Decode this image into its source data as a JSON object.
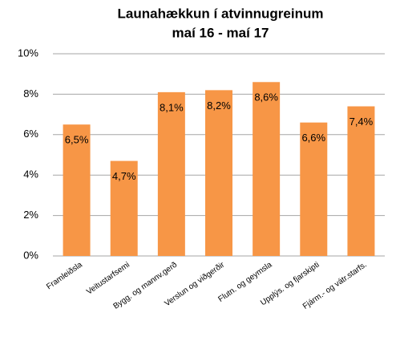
{
  "chart_data": {
    "type": "bar",
    "title": "Launahækkun í atvinnugreinum",
    "subtitle": "maí 16 - maí 17",
    "categories": [
      "Framleiðsla",
      "Veitustarfsemi",
      "Bygg. og mannv.gerð",
      "Verslun og viðgerðir",
      "Flutn. og geymsla",
      "Upplýs. og fjarskipti",
      "Fjárm.- og vátr.starfs."
    ],
    "values": [
      6.5,
      4.7,
      8.1,
      8.2,
      8.6,
      6.6,
      7.4
    ],
    "value_labels": [
      "6,5%",
      "4,7%",
      "8,1%",
      "8,2%",
      "8,6%",
      "6,6%",
      "7,4%"
    ],
    "color": "#f79646",
    "ylim": [
      0,
      10
    ],
    "yticks": [
      {
        "value": 0,
        "label": "0%"
      },
      {
        "value": 2,
        "label": "2%"
      },
      {
        "value": 4,
        "label": "4%"
      },
      {
        "value": 6,
        "label": "6%"
      },
      {
        "value": 8,
        "label": "8%"
      },
      {
        "value": 10,
        "label": "10%"
      }
    ],
    "grid": true
  }
}
